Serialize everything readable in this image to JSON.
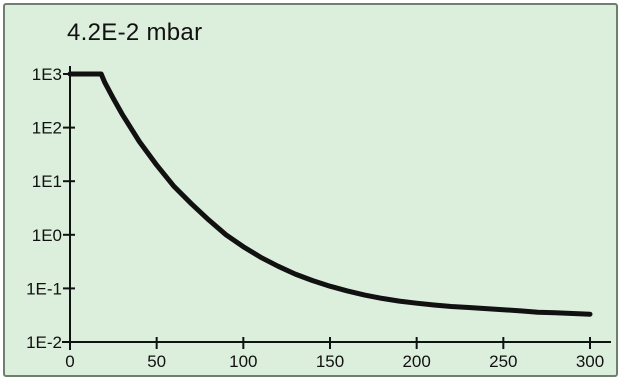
{
  "display": {
    "pressure_reading": "4.2E-2 mbar",
    "background_color": "#dcefdc",
    "curve_color": "#111111"
  },
  "chart_data": {
    "type": "line",
    "title": "",
    "xlabel": "",
    "ylabel": "",
    "y_scale": "log",
    "xlim": [
      0,
      310
    ],
    "ylim": [
      0.01,
      1000
    ],
    "x_ticks": [
      0,
      50,
      100,
      150,
      200,
      250,
      300
    ],
    "x_tick_labels": [
      "0",
      "50",
      "100",
      "150",
      "200",
      "250",
      "300"
    ],
    "y_ticks": [
      0.01,
      0.1,
      1,
      10,
      100,
      1000
    ],
    "y_tick_labels": [
      "1E-2",
      "1E-1",
      "1E0",
      "1E1",
      "1E2",
      "1E3"
    ],
    "grid": false,
    "series": [
      {
        "x": [
          0,
          5,
          10,
          15,
          18,
          20,
          25,
          30,
          40,
          50,
          60,
          70,
          80,
          90,
          100,
          110,
          120,
          130,
          140,
          150,
          160,
          170,
          180,
          190,
          200,
          210,
          220,
          230,
          240,
          250,
          260,
          270,
          280,
          290,
          300
        ],
        "y": [
          1000,
          1000,
          1000,
          1000,
          1000,
          700,
          350,
          180,
          55,
          20,
          8,
          3.8,
          1.9,
          1.0,
          0.6,
          0.38,
          0.26,
          0.185,
          0.14,
          0.11,
          0.09,
          0.075,
          0.065,
          0.058,
          0.053,
          0.049,
          0.046,
          0.044,
          0.042,
          0.04,
          0.038,
          0.036,
          0.035,
          0.034,
          0.033
        ]
      }
    ]
  }
}
